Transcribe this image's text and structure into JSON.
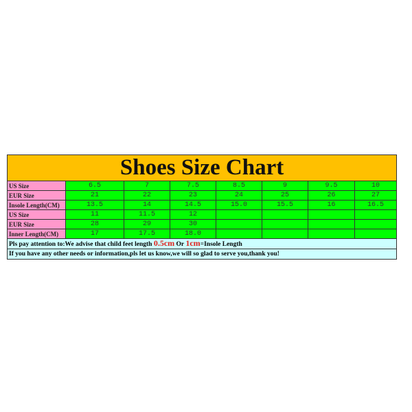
{
  "title": "Shoes Size Chart",
  "colors": {
    "title_bg": "#ffc000",
    "label_bg": "#ff99cc",
    "value_bg": "#00ff00",
    "note_bg": "#ccffff",
    "highlight": "#e0201a"
  },
  "rows": [
    {
      "label": "US Size",
      "values": [
        "6.5",
        "7",
        "7.5",
        "8.5",
        "9",
        "9.5",
        "10"
      ]
    },
    {
      "label": "EUR Size",
      "values": [
        "21",
        "22",
        "23",
        "24",
        "25",
        "26",
        "27"
      ]
    },
    {
      "label": "Insole Length(CM)",
      "values": [
        "13.5",
        "14",
        "14.5",
        "15.0",
        "15.5",
        "16",
        "16.5"
      ]
    },
    {
      "label": "US Size",
      "values": [
        "11",
        "11.5",
        "12",
        "",
        "",
        "",
        ""
      ]
    },
    {
      "label": "EUR Size",
      "values": [
        "28",
        "29",
        "30",
        "",
        "",
        "",
        ""
      ]
    },
    {
      "label": "Inner Length(CM)",
      "values": [
        "17",
        "17.5",
        "18.0",
        "",
        "",
        "",
        ""
      ]
    }
  ],
  "notes": {
    "line1_prefix": "Pls pay attention to:We advise that child feet length ",
    "line1_red1": "0.5cm",
    "line1_mid": " Or ",
    "line1_red2": "1cm",
    "line1_suffix": "=Insole Length",
    "line2": "If you have any other needs or information,pls let us know,we will so glad to serve you,thank you!"
  }
}
